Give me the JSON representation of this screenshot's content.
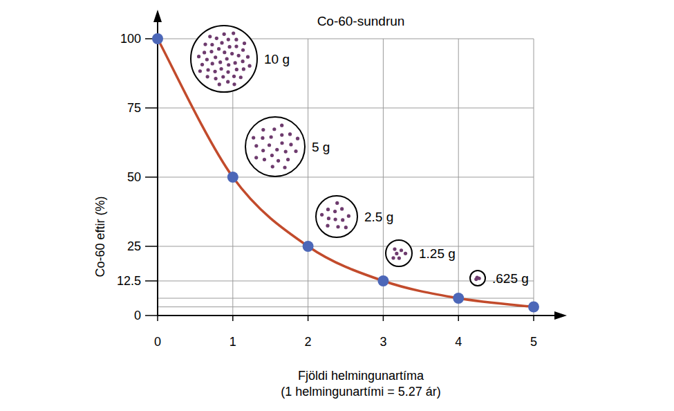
{
  "chart_data": {
    "type": "line",
    "title": "Co-60-sundrun",
    "xlabel": [
      "Fjöldi helmingunartíma",
      "(1 helmingunartími = 5.27 ár)"
    ],
    "ylabel": "Co-60 eftir (%)",
    "x": [
      0,
      1,
      2,
      3,
      4,
      5
    ],
    "values": [
      100,
      50,
      25,
      12.5,
      6.25,
      3.125
    ],
    "color": "#c24b2c",
    "marker": "circle",
    "xlim": [
      0,
      5
    ],
    "xticks": [
      0,
      1,
      2,
      3,
      4,
      5
    ],
    "ylim": [
      0,
      100
    ],
    "yticks": [
      0,
      12.5,
      25,
      50,
      75,
      100
    ],
    "grid": true,
    "annotations": [
      {
        "text": "10 g"
      },
      {
        "text": "5 g"
      },
      {
        "text": "2.5 g"
      },
      {
        "text": "1.25 g"
      },
      {
        "text": ".625 g"
      }
    ]
  }
}
